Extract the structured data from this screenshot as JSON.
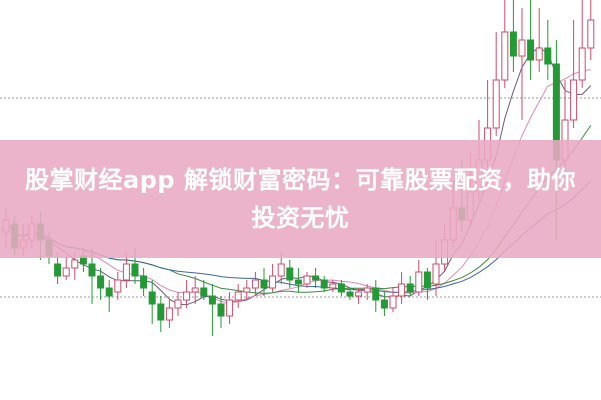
{
  "banner": {
    "title": "股掌财经app 解锁财富密码：可靠股票配资，助你投资无忧"
  },
  "colors": {
    "up": "#d24a6a",
    "down": "#239a35",
    "banner": "#e8aac3",
    "grid": "#9a9a9a",
    "ma": [
      "#6a5a7a",
      "#e08ab8",
      "#3a8a3a",
      "#3a6a9a"
    ]
  },
  "chart_data": {
    "type": "candlestick",
    "grid": true,
    "ylim": [
      0,
      100
    ],
    "moving_averages": [
      5,
      10,
      20,
      30
    ],
    "ohlc": [
      [
        42,
        45,
        48,
        38
      ],
      [
        44,
        38,
        46,
        36
      ],
      [
        38,
        40,
        44,
        36
      ],
      [
        40,
        44,
        46,
        38
      ],
      [
        44,
        40,
        47,
        35
      ],
      [
        40,
        36,
        42,
        34
      ],
      [
        34,
        31,
        37,
        29
      ],
      [
        31,
        33,
        36,
        30
      ],
      [
        33,
        35,
        37,
        30
      ],
      [
        36,
        34,
        38,
        32
      ],
      [
        34,
        31,
        38,
        24
      ],
      [
        31,
        28,
        33,
        25
      ],
      [
        28,
        26,
        30,
        22
      ],
      [
        27,
        30,
        32,
        25
      ],
      [
        30,
        34,
        37,
        28
      ],
      [
        34,
        31,
        38,
        29
      ],
      [
        31,
        28,
        33,
        26
      ],
      [
        27,
        24,
        30,
        19
      ],
      [
        24,
        20,
        26,
        17
      ],
      [
        20,
        23,
        25,
        18
      ],
      [
        23,
        25,
        27,
        21
      ],
      [
        25,
        27,
        30,
        23
      ],
      [
        27,
        28,
        31,
        24
      ],
      [
        28,
        26,
        30,
        25
      ],
      [
        26,
        24,
        29,
        16
      ],
      [
        24,
        21,
        26,
        18
      ],
      [
        21,
        25,
        27,
        19
      ],
      [
        25,
        27,
        29,
        23
      ],
      [
        27,
        28,
        30,
        25
      ],
      [
        28,
        30,
        32,
        26
      ],
      [
        30,
        28,
        33,
        26
      ],
      [
        28,
        31,
        34,
        27
      ],
      [
        31,
        34,
        37,
        29
      ],
      [
        33,
        30,
        35,
        28
      ],
      [
        30,
        29,
        33,
        27
      ],
      [
        29,
        31,
        32,
        28
      ],
      [
        31,
        30,
        33,
        28
      ],
      [
        30,
        28,
        31,
        27
      ],
      [
        28,
        29,
        30,
        27
      ],
      [
        29,
        27,
        30,
        26
      ],
      [
        27,
        26,
        28,
        25
      ],
      [
        26,
        27,
        28,
        24
      ],
      [
        27,
        28,
        29,
        25
      ],
      [
        28,
        25,
        30,
        22
      ],
      [
        25,
        23,
        27,
        21
      ],
      [
        23,
        26,
        28,
        22
      ],
      [
        26,
        29,
        32,
        24
      ],
      [
        29,
        27,
        31,
        26
      ],
      [
        27,
        32,
        35,
        26
      ],
      [
        32,
        28,
        33,
        25
      ],
      [
        29,
        34,
        40,
        26
      ],
      [
        34,
        40,
        44,
        32
      ],
      [
        40,
        48,
        55,
        38
      ],
      [
        48,
        45,
        60,
        42
      ],
      [
        45,
        52,
        62,
        43
      ],
      [
        52,
        60,
        70,
        50
      ],
      [
        60,
        68,
        80,
        58
      ],
      [
        68,
        80,
        92,
        66
      ],
      [
        80,
        92,
        100,
        78
      ],
      [
        92,
        86,
        100,
        82
      ],
      [
        86,
        90,
        98,
        70
      ],
      [
        90,
        85,
        100,
        80
      ],
      [
        85,
        88,
        98,
        82
      ],
      [
        88,
        84,
        95,
        80
      ],
      [
        84,
        60,
        90,
        40
      ],
      [
        60,
        70,
        80,
        55
      ],
      [
        70,
        80,
        95,
        68
      ],
      [
        80,
        88,
        100,
        78
      ],
      [
        88,
        95,
        100,
        85
      ]
    ]
  }
}
